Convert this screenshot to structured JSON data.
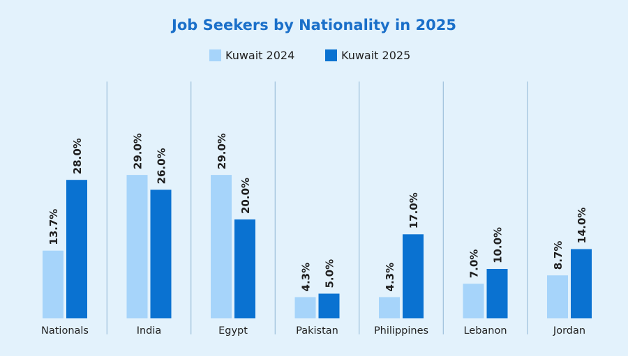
{
  "chart_data": {
    "type": "bar",
    "title": "Job Seekers by Nationality in 2025",
    "categories": [
      "Nationals",
      "India",
      "Egypt",
      "Pakistan",
      "Philippines",
      "Lebanon",
      "Jordan"
    ],
    "series": [
      {
        "name": "Kuwait 2024",
        "color": "#a6d4fa",
        "values": [
          13.7,
          29.0,
          29.0,
          4.3,
          4.3,
          7.0,
          8.7
        ],
        "labels": [
          "13.7%",
          "29.0%",
          "29.0%",
          "4.3%",
          "4.3%",
          "7.0%",
          "8.7%"
        ]
      },
      {
        "name": "Kuwait 2025",
        "color": "#0a72d1",
        "values": [
          28.0,
          26.0,
          20.0,
          5.0,
          17.0,
          10.0,
          14.0
        ],
        "labels": [
          "28.0%",
          "26.0%",
          "20.0%",
          "5.0%",
          "17.0%",
          "10.0%",
          "14.0%"
        ]
      }
    ],
    "ylim": [
      0,
      35
    ],
    "legend_position": "top-center",
    "grid": false,
    "separators": true
  }
}
